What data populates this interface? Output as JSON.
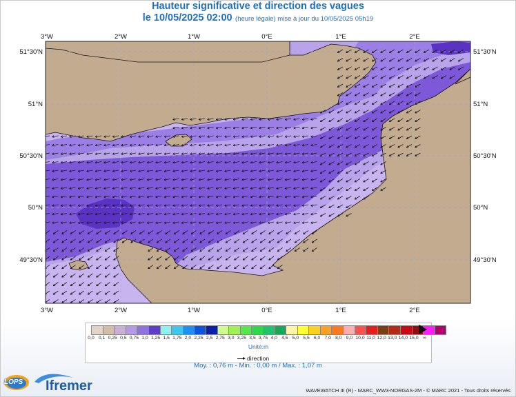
{
  "header": {
    "title": "Hauteur significative et direction des vagues",
    "date": "le 10/05/2025 02:00",
    "subtitle": "(heure légale) mise à jour du 10/05/2025 05h19"
  },
  "map": {
    "lon_labels": [
      "3°W",
      "2°W",
      "1°W",
      "0°E",
      "1°E",
      "2°E"
    ],
    "lat_labels": [
      "51°30'N",
      "51°N",
      "50°30'N",
      "50°N",
      "49°30'N"
    ],
    "lon_range": [
      -3.0,
      2.75
    ],
    "lat_range": [
      49.05,
      51.6
    ],
    "land_color": "#c3ab90",
    "water_palette": [
      "#ddd0e8",
      "#b9a4ec",
      "#9b7fe6",
      "#7d58d8",
      "#5b33c4"
    ],
    "wave_direction": "east-northeast toward west-southwest"
  },
  "legend": {
    "scale_values": [
      "0,0",
      "0,1",
      "0,25",
      "0,5",
      "0,75",
      "1,0",
      "1,25",
      "1,5",
      "1,75",
      "2,0",
      "2,25",
      "2,5",
      "2,75",
      "3,0",
      "3,25",
      "3,5",
      "3,75",
      "4,0",
      "4,5",
      "5,0",
      "5,5",
      "6,0",
      "7,0",
      "8,0",
      "9,0",
      "10,0",
      "11,0",
      "12,0",
      "13,0",
      "14,0",
      "15,0",
      "∞"
    ],
    "scale_colors": [
      "#e4d4c6",
      "#d1bda8",
      "#c8b0d6",
      "#b49ae8",
      "#8f72dd",
      "#5f3cc9",
      "#8ef2f2",
      "#3ec6f0",
      "#1e90ef",
      "#0d55d8",
      "#0c1fa9",
      "#cffc8e",
      "#9ff254",
      "#55ea4a",
      "#2fd84a",
      "#21c26a",
      "#16a856",
      "#fff5a8",
      "#ffff36",
      "#ffd21f",
      "#ffa11f",
      "#ff7a1f",
      "#ffaeb1",
      "#ff5050",
      "#e41d1d",
      "#7a4015",
      "#b42a15",
      "#c80818",
      "#8e0d0d",
      "#ff1dff",
      "#b0006e"
    ],
    "unit": "Unité:m",
    "direction_label": "direction"
  },
  "stats": "Moy. : 0,76 m   -   Min. : 0,00 m / Max. : 1,07 m",
  "credits": "WAVEWATCH III (R) - MARC_WW3-NORGAS-2M - © MARC 2021 - Tous droits réservés",
  "logos": {
    "lops": "LOPS",
    "ifremer": "Ifremer"
  }
}
